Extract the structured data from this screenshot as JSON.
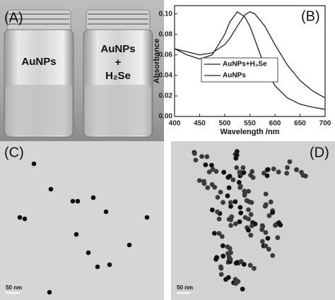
{
  "panels": {
    "A": {
      "label": "(A)",
      "vial_left": "AuNPs",
      "vial_right": [
        "AuNPs",
        "+",
        "H₂Se"
      ]
    },
    "C": {
      "label": "(C)",
      "scale_bar": "50 nm"
    },
    "D": {
      "label": "(D)",
      "scale_bar": "50 nm"
    }
  },
  "chart_data": {
    "type": "line",
    "label": "(B)",
    "xlabel": "Wavelength /nm",
    "ylabel": "Absorbance",
    "x": [
      400,
      425,
      450,
      475,
      500,
      510,
      525,
      540,
      550,
      560,
      580,
      600,
      625,
      650,
      675,
      700
    ],
    "series": [
      {
        "name": "AuNPs+H₂Se",
        "color": "#222222",
        "values": [
          0.066,
          0.063,
          0.06,
          0.062,
          0.07,
          0.076,
          0.088,
          0.099,
          0.102,
          0.1,
          0.088,
          0.07,
          0.05,
          0.035,
          0.025,
          0.018
        ]
      },
      {
        "name": "AuNPs",
        "color": "#222222",
        "values": [
          0.066,
          0.06,
          0.056,
          0.06,
          0.08,
          0.092,
          0.102,
          0.097,
          0.088,
          0.075,
          0.048,
          0.03,
          0.018,
          0.012,
          0.009,
          0.007
        ]
      }
    ],
    "xlim": [
      400,
      700
    ],
    "xticks": [
      400,
      450,
      500,
      550,
      600,
      650,
      700
    ],
    "ylim": [
      0,
      0.108
    ],
    "yticks": [
      {
        "value": 0,
        "label": "0.00"
      },
      {
        "value": 0.02,
        "label": "0.02"
      },
      {
        "value": 0.04,
        "label": "0.04"
      },
      {
        "value": 0.06,
        "label": "0.06"
      },
      {
        "value": 0.08,
        "label": "0.08"
      },
      {
        "value": 0.1,
        "label": "0.10"
      }
    ]
  }
}
